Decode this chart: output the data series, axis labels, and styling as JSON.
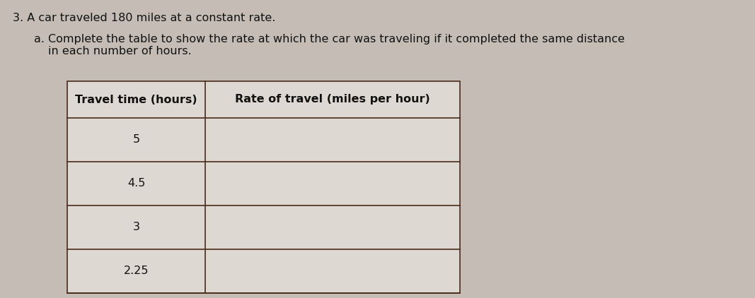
{
  "title_number": "3.",
  "title_text": " A car traveled 180 miles at a constant rate.",
  "subtitle_letter": "a.",
  "subtitle_text": "Complete the table to show the rate at which the car was traveling if it completed the same distance\nin each number of hours.",
  "col1_header": "Travel time (hours)",
  "col2_header": "Rate of travel (miles per hour)",
  "rows": [
    "5",
    "4.5",
    "3",
    "2.25"
  ],
  "background_color": "#c5bdb5",
  "table_bg": "#ddd8d2",
  "border_color": "#4a2a1a",
  "text_color": "#111111",
  "title_fontsize": 11.5,
  "subtitle_fontsize": 11.5,
  "table_fontsize": 11.5
}
